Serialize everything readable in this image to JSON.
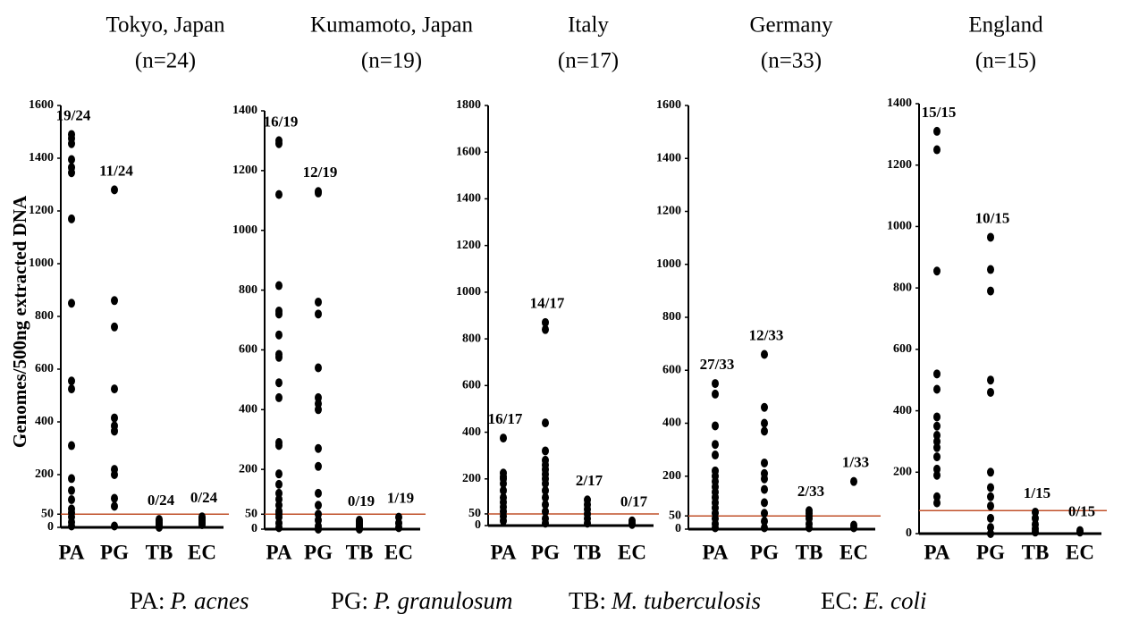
{
  "y_axis_label": "Genomes/500ng extracted DNA",
  "chart_data": [
    {
      "type": "strip",
      "title": "Tokyo, Japan",
      "subtitle": "(n=24)",
      "categories": [
        "PA",
        "PG",
        "TB",
        "EC"
      ],
      "values": [
        [
          1490,
          1475,
          1455,
          1395,
          1365,
          1345,
          1170,
          850,
          555,
          525,
          310,
          185,
          140,
          105,
          70,
          55,
          40,
          20,
          5
        ],
        [
          1280,
          860,
          760,
          525,
          415,
          385,
          365,
          220,
          200,
          110,
          80,
          5
        ],
        [
          30,
          25,
          20,
          15,
          10,
          5,
          0
        ],
        [
          40,
          35,
          30,
          25,
          20,
          15,
          10
        ]
      ],
      "fraction_labels": [
        "19/24",
        "11/24",
        "0/24",
        "0/24"
      ],
      "color": "#000000",
      "ylim": [
        0,
        1600
      ],
      "yticks": [
        0,
        50,
        200,
        400,
        600,
        800,
        1000,
        1200,
        1400,
        1600
      ],
      "threshold": 50,
      "threshold_color": "#c0502a"
    },
    {
      "type": "strip",
      "title": "Kumamoto, Japan",
      "subtitle": "(n=19)",
      "categories": [
        "PA",
        "PG",
        "TB",
        "EC"
      ],
      "values": [
        [
          1300,
          1290,
          1120,
          815,
          730,
          720,
          650,
          585,
          575,
          490,
          440,
          290,
          280,
          185,
          150,
          120,
          100,
          80,
          60,
          50,
          40,
          20,
          5
        ],
        [
          1130,
          1125,
          760,
          720,
          540,
          440,
          420,
          400,
          270,
          210,
          120,
          80,
          50,
          30,
          10,
          0
        ],
        [
          30,
          25,
          20,
          15,
          10,
          5,
          0
        ],
        [
          40,
          20,
          5
        ]
      ],
      "fraction_labels": [
        "16/19",
        "12/19",
        "0/19",
        "1/19"
      ],
      "color": "#000000",
      "ylim": [
        0,
        1400
      ],
      "yticks": [
        0,
        50,
        200,
        400,
        600,
        800,
        1000,
        1200,
        1400
      ],
      "threshold": 50,
      "threshold_color": "#c0502a"
    },
    {
      "type": "strip",
      "title": "Italy",
      "subtitle": "(n=17)",
      "categories": [
        "PA",
        "PG",
        "TB",
        "EC"
      ],
      "values": [
        [
          375,
          225,
          210,
          200,
          180,
          150,
          120,
          100,
          80,
          60,
          40,
          20
        ],
        [
          870,
          840,
          440,
          320,
          280,
          260,
          240,
          220,
          200,
          180,
          150,
          120,
          90,
          60,
          30,
          10
        ],
        [
          110,
          90,
          70,
          50,
          30,
          10
        ],
        [
          20,
          10,
          5
        ]
      ],
      "fraction_labels": [
        "16/17",
        "14/17",
        "2/17",
        "0/17"
      ],
      "color": "#000000",
      "ylim": [
        0,
        1800
      ],
      "yticks": [
        0,
        50,
        200,
        400,
        600,
        800,
        1000,
        1200,
        1400,
        1600,
        1800
      ],
      "threshold": 50,
      "threshold_color": "#c0502a"
    },
    {
      "type": "strip",
      "title": "Germany",
      "subtitle": "(n=33)",
      "categories": [
        "PA",
        "PG",
        "TB",
        "EC"
      ],
      "values": [
        [
          550,
          510,
          390,
          320,
          280,
          220,
          200,
          180,
          160,
          140,
          120,
          100,
          80,
          60,
          40,
          20,
          5
        ],
        [
          660,
          460,
          400,
          370,
          250,
          210,
          190,
          150,
          100,
          60,
          30,
          5
        ],
        [
          70,
          60,
          50,
          40,
          20,
          5
        ],
        [
          180,
          15,
          5
        ]
      ],
      "fraction_labels": [
        "27/33",
        "12/33",
        "2/33",
        "1/33"
      ],
      "color": "#000000",
      "ylim": [
        0,
        1600
      ],
      "yticks": [
        0,
        50,
        200,
        400,
        600,
        800,
        1000,
        1200,
        1400,
        1600
      ],
      "threshold": 50,
      "threshold_color": "#c0502a"
    },
    {
      "type": "strip",
      "title": "England",
      "subtitle": "(n=15)",
      "categories": [
        "PA",
        "PG",
        "TB",
        "EC"
      ],
      "values": [
        [
          1310,
          1250,
          855,
          520,
          470,
          380,
          350,
          320,
          300,
          280,
          250,
          210,
          190,
          120,
          100
        ],
        [
          965,
          860,
          790,
          500,
          460,
          200,
          150,
          120,
          90,
          50,
          20,
          0
        ],
        [
          70,
          50,
          30,
          15,
          5
        ],
        [
          10,
          5
        ]
      ],
      "fraction_labels": [
        "15/15",
        "10/15",
        "1/15",
        "0/15"
      ],
      "color": "#000000",
      "ylim": [
        0,
        1400
      ],
      "yticks": [
        0,
        200,
        400,
        600,
        800,
        1000,
        1200,
        1400
      ],
      "threshold": 75,
      "threshold_color": "#c0502a"
    }
  ],
  "footnote": [
    {
      "abbr": "PA:",
      "name": "P. acnes"
    },
    {
      "abbr": "PG:",
      "name": "P. granulosum"
    },
    {
      "abbr": "TB:",
      "name": "M. tuberculosis"
    },
    {
      "abbr": "EC:",
      "name": "E. coli"
    }
  ]
}
